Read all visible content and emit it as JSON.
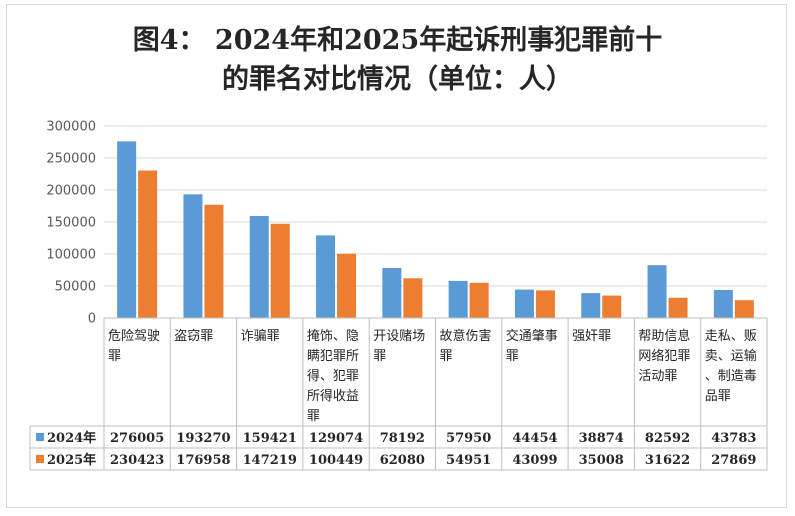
{
  "title_line1": "图4： 2024年和2025年起诉刑事犯罪前十",
  "title_line2": "的罪名对比情况（单位：人）",
  "chart_data": {
    "type": "bar",
    "title": "图4： 2024年和2025年起诉刑事犯罪前十的罪名对比情况（单位：人）",
    "categories": [
      [
        "危险驾驶",
        "罪"
      ],
      [
        "盗窃罪"
      ],
      [
        "诈骗罪"
      ],
      [
        "掩饰、隐",
        "瞒犯罪所",
        "得、犯罪",
        "所得收益",
        "罪"
      ],
      [
        "开设赌场",
        "罪"
      ],
      [
        "故意伤害",
        "罪"
      ],
      [
        "交通肇事",
        "罪"
      ],
      [
        "强奸罪"
      ],
      [
        "帮助信息",
        "网络犯罪",
        "活动罪"
      ],
      [
        "走私、贩",
        "卖、运输",
        "、制造毒",
        "品罪"
      ]
    ],
    "series": [
      {
        "name": "2024年",
        "color": "#5b9bd5",
        "values": [
          276005,
          193270,
          159421,
          129074,
          78192,
          57950,
          44454,
          38874,
          82592,
          43783
        ]
      },
      {
        "name": "2025年",
        "color": "#ed7d31",
        "values": [
          230423,
          176958,
          147219,
          100449,
          62080,
          54951,
          43099,
          35008,
          31622,
          27869
        ]
      }
    ],
    "yticks": [
      "0",
      "50000",
      "100000",
      "150000",
      "200000",
      "250000",
      "300000"
    ],
    "ylim": [
      0,
      300000
    ],
    "grid": true,
    "legend": "data-table",
    "data_table": true
  }
}
